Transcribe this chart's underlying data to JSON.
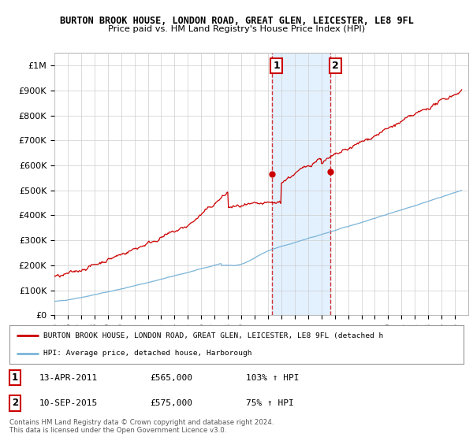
{
  "title1": "BURTON BROOK HOUSE, LONDON ROAD, GREAT GLEN, LEICESTER, LE8 9FL",
  "title2": "Price paid vs. HM Land Registry's House Price Index (HPI)",
  "ylabel_ticks": [
    "£0",
    "£100K",
    "£200K",
    "£300K",
    "£400K",
    "£500K",
    "£600K",
    "£700K",
    "£800K",
    "£900K",
    "£1M"
  ],
  "ytick_vals": [
    0,
    100000,
    200000,
    300000,
    400000,
    500000,
    600000,
    700000,
    800000,
    900000,
    1000000
  ],
  "xlim_start": 1995,
  "xlim_end": 2026,
  "ylim_max": 1050000,
  "hpi_color": "#7ab4d8",
  "price_color": "#cc0000",
  "sale1_year": 2011.28,
  "sale1_price": 565000,
  "sale2_year": 2015.69,
  "sale2_price": 575000,
  "sale1_label": "1",
  "sale2_label": "2",
  "legend_line1": "BURTON BROOK HOUSE, LONDON ROAD, GREAT GLEN, LEICESTER, LE8 9FL (detached h",
  "legend_line2": "HPI: Average price, detached house, Harborough",
  "table_row1": [
    "1",
    "13-APR-2011",
    "£565,000",
    "103% ↑ HPI"
  ],
  "table_row2": [
    "2",
    "10-SEP-2015",
    "£575,000",
    "75% ↑ HPI"
  ],
  "footnote": "Contains HM Land Registry data © Crown copyright and database right 2024.\nThis data is licensed under the Open Government Licence v3.0.",
  "shaded_region_start": 2011.28,
  "shaded_region_end": 2015.69,
  "shaded_color": "#ddeeff",
  "background_color": "#ffffff",
  "grid_color": "#cccccc"
}
